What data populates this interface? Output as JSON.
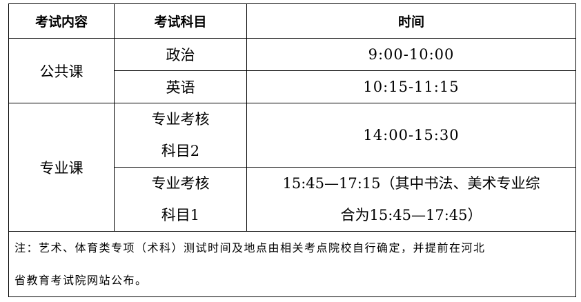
{
  "headers": [
    "考试内容",
    "考试科目",
    "时间"
  ],
  "groups": {
    "public": "公共课",
    "major": "专业课"
  },
  "rows": [
    {
      "subject": "政治",
      "time": "9:00-10:00"
    },
    {
      "subject": "英语",
      "time": "10:15-11:15"
    },
    {
      "subject_line1": "专业考核",
      "subject_line2": "科目2",
      "time": "14:00-15:30"
    },
    {
      "subject_line1": "专业考核",
      "subject_line2": "科目1",
      "time_line1": "15:45—17:15（其中书法、美术专业综",
      "time_line2": "合为15:45—17:45）"
    }
  ],
  "note_line1": "注：艺术、体育类专项（术科）测试时间及地点由相关考点院校自行确定，并提前在河北",
  "note_line2": "省教育考试院网站公布。"
}
